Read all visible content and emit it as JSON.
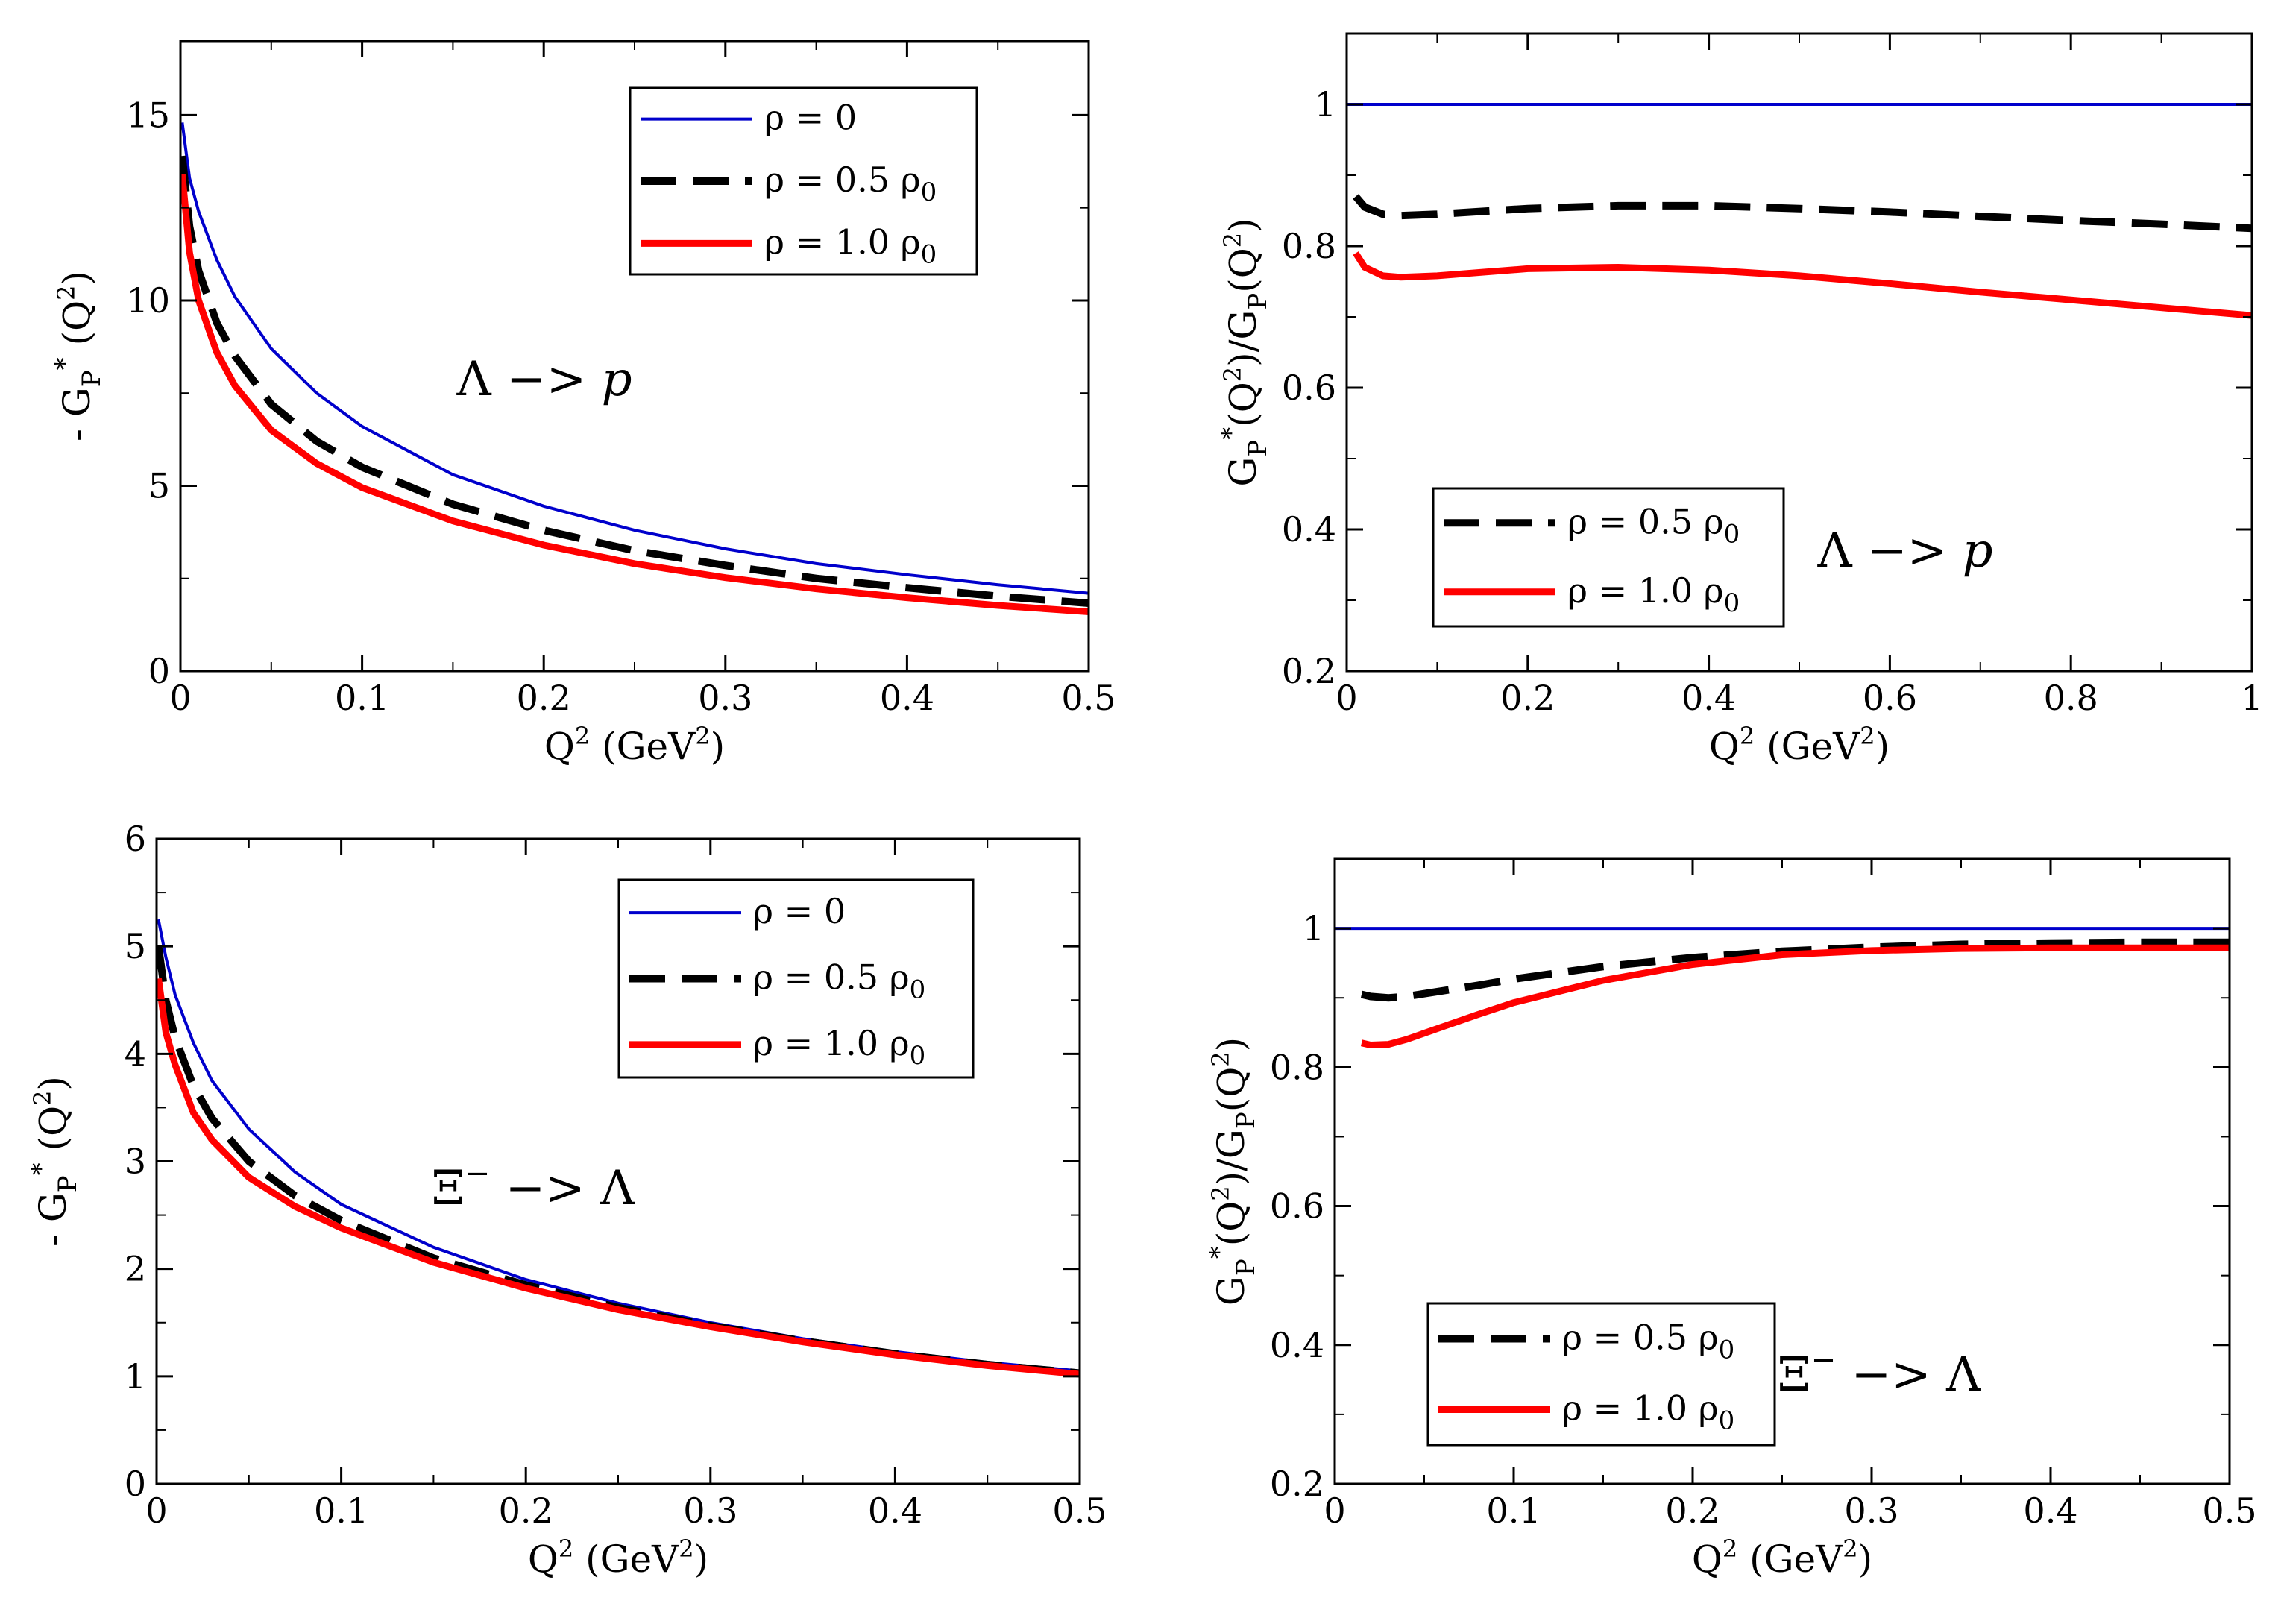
{
  "chart_data": [
    {
      "id": "top_left",
      "type": "line",
      "xlabel": "Q² (GeV²)",
      "ylabel": "- G_P^* (Q²)",
      "xlim": [
        0,
        0.5
      ],
      "ylim": [
        0,
        17
      ],
      "xticks": [
        0,
        0.1,
        0.2,
        0.3,
        0.4,
        0.5
      ],
      "xticklabels": [
        "0",
        "0.1",
        "0.2",
        "0.3",
        "0.4",
        "0.5"
      ],
      "yticks": [
        0,
        5,
        10,
        15
      ],
      "yticklabels": [
        "0",
        "5",
        "10",
        "15"
      ],
      "legend_position": "top-right",
      "legend": [
        "ρ = 0",
        "ρ = 0.5 ρ0",
        "ρ = 1.0 ρ0"
      ],
      "annotation": "Λ −> p",
      "series": [
        {
          "name": "ρ = 0",
          "color": "#0000cc",
          "dash": "solid",
          "x": [
            0.001,
            0.005,
            0.01,
            0.02,
            0.03,
            0.05,
            0.075,
            0.1,
            0.15,
            0.2,
            0.25,
            0.3,
            0.35,
            0.4,
            0.45,
            0.5
          ],
          "y": [
            14.8,
            13.3,
            12.4,
            11.1,
            10.1,
            8.7,
            7.5,
            6.6,
            5.3,
            4.45,
            3.8,
            3.3,
            2.9,
            2.6,
            2.33,
            2.1
          ]
        },
        {
          "name": "ρ = 0.5 ρ0",
          "color": "#000000",
          "dash": "dashed",
          "x": [
            0.001,
            0.005,
            0.01,
            0.02,
            0.03,
            0.05,
            0.075,
            0.1,
            0.15,
            0.2,
            0.25,
            0.3,
            0.35,
            0.4,
            0.45,
            0.5
          ],
          "y": [
            13.9,
            12.0,
            10.8,
            9.4,
            8.5,
            7.2,
            6.2,
            5.5,
            4.5,
            3.8,
            3.25,
            2.85,
            2.5,
            2.25,
            2.02,
            1.83
          ]
        },
        {
          "name": "ρ = 1.0 ρ0",
          "color": "#ff0000",
          "dash": "solid",
          "x": [
            0.001,
            0.005,
            0.01,
            0.02,
            0.03,
            0.05,
            0.075,
            0.1,
            0.15,
            0.2,
            0.25,
            0.3,
            0.35,
            0.4,
            0.45,
            0.5
          ],
          "y": [
            13.4,
            11.3,
            10.0,
            8.6,
            7.7,
            6.5,
            5.6,
            4.95,
            4.05,
            3.4,
            2.9,
            2.52,
            2.22,
            1.98,
            1.77,
            1.6
          ]
        }
      ]
    },
    {
      "id": "top_right",
      "type": "line",
      "xlabel": "Q² (GeV²)",
      "ylabel": "G_P^*(Q²)/G_P(Q²)",
      "xlim": [
        0,
        1
      ],
      "ylim": [
        0.2,
        1.1
      ],
      "xticks": [
        0,
        0.2,
        0.4,
        0.6,
        0.8,
        1
      ],
      "xticklabels": [
        "0",
        "0.2",
        "0.4",
        "0.6",
        "0.8",
        "1"
      ],
      "yticks": [
        0.2,
        0.4,
        0.6,
        0.8,
        1
      ],
      "yticklabels": [
        "0.2",
        "0.4",
        "0.6",
        "0.8",
        "1"
      ],
      "legend_position": "bottom-left",
      "legend": [
        "ρ = 0.5 ρ0",
        "ρ = 1.0 ρ0"
      ],
      "annotation": "Λ −> p",
      "series": [
        {
          "name": "ρ = 0",
          "color": "#0000cc",
          "dash": "solid",
          "x": [
            0,
            1
          ],
          "y": [
            1.0,
            1.0
          ]
        },
        {
          "name": "ρ = 0.5 ρ0",
          "color": "#000000",
          "dash": "dashed",
          "x": [
            0.01,
            0.02,
            0.04,
            0.06,
            0.1,
            0.2,
            0.3,
            0.4,
            0.5,
            0.6,
            0.7,
            0.8,
            0.9,
            1.0
          ],
          "y": [
            0.87,
            0.855,
            0.845,
            0.843,
            0.845,
            0.853,
            0.857,
            0.857,
            0.853,
            0.848,
            0.842,
            0.836,
            0.831,
            0.825
          ]
        },
        {
          "name": "ρ = 1.0 ρ0",
          "color": "#ff0000",
          "dash": "solid",
          "x": [
            0.01,
            0.02,
            0.04,
            0.06,
            0.1,
            0.2,
            0.3,
            0.4,
            0.5,
            0.6,
            0.7,
            0.8,
            0.9,
            1.0
          ],
          "y": [
            0.79,
            0.77,
            0.758,
            0.756,
            0.758,
            0.768,
            0.77,
            0.766,
            0.758,
            0.747,
            0.735,
            0.724,
            0.713,
            0.702
          ]
        }
      ]
    },
    {
      "id": "bottom_left",
      "type": "line",
      "xlabel": "Q² (GeV²)",
      "ylabel": "- G_P^* (Q²)",
      "xlim": [
        0,
        0.5
      ],
      "ylim": [
        0,
        6
      ],
      "xticks": [
        0,
        0.1,
        0.2,
        0.3,
        0.4,
        0.5
      ],
      "xticklabels": [
        "0",
        "0.1",
        "0.2",
        "0.3",
        "0.4",
        "0.5"
      ],
      "yticks": [
        0,
        1,
        2,
        3,
        4,
        5,
        6
      ],
      "yticklabels": [
        "0",
        "1",
        "2",
        "3",
        "4",
        "5",
        "6"
      ],
      "legend_position": "top-right",
      "legend": [
        "ρ = 0",
        "ρ = 0.5 ρ0",
        "ρ = 1.0 ρ0"
      ],
      "annotation": "Ξ⁻ −> Λ",
      "series": [
        {
          "name": "ρ = 0",
          "color": "#0000cc",
          "dash": "solid",
          "x": [
            0.001,
            0.005,
            0.01,
            0.02,
            0.03,
            0.05,
            0.075,
            0.1,
            0.15,
            0.2,
            0.25,
            0.3,
            0.35,
            0.4,
            0.45,
            0.5
          ],
          "y": [
            5.25,
            4.9,
            4.55,
            4.1,
            3.75,
            3.3,
            2.9,
            2.6,
            2.2,
            1.9,
            1.68,
            1.5,
            1.35,
            1.23,
            1.13,
            1.05
          ]
        },
        {
          "name": "ρ = 0.5 ρ0",
          "color": "#000000",
          "dash": "dashed",
          "x": [
            0.001,
            0.005,
            0.01,
            0.02,
            0.03,
            0.05,
            0.075,
            0.1,
            0.15,
            0.2,
            0.25,
            0.3,
            0.35,
            0.4,
            0.45,
            0.5
          ],
          "y": [
            5.0,
            4.5,
            4.15,
            3.7,
            3.4,
            3.0,
            2.68,
            2.45,
            2.1,
            1.85,
            1.64,
            1.47,
            1.33,
            1.21,
            1.11,
            1.03
          ]
        },
        {
          "name": "ρ = 1.0 ρ0",
          "color": "#ff0000",
          "dash": "solid",
          "x": [
            0.001,
            0.005,
            0.01,
            0.02,
            0.03,
            0.05,
            0.075,
            0.1,
            0.15,
            0.2,
            0.25,
            0.3,
            0.35,
            0.4,
            0.45,
            0.5
          ],
          "y": [
            4.7,
            4.2,
            3.9,
            3.45,
            3.2,
            2.85,
            2.58,
            2.38,
            2.06,
            1.82,
            1.62,
            1.46,
            1.32,
            1.2,
            1.1,
            1.02
          ]
        }
      ]
    },
    {
      "id": "bottom_right",
      "type": "line",
      "xlabel": "Q² (GeV²)",
      "ylabel": "G_P^*(Q²)/G_P(Q²)",
      "xlim": [
        0,
        0.5
      ],
      "ylim": [
        0.2,
        1.1
      ],
      "xticks": [
        0,
        0.1,
        0.2,
        0.3,
        0.4,
        0.5
      ],
      "xticklabels": [
        "0",
        "0.1",
        "0.2",
        "0.3",
        "0.4",
        "0.5"
      ],
      "yticks": [
        0.2,
        0.4,
        0.6,
        0.8,
        1
      ],
      "yticklabels": [
        "0.2",
        "0.4",
        "0.6",
        "0.8",
        "1"
      ],
      "legend_position": "bottom-left",
      "legend": [
        "ρ = 0.5 ρ0",
        "ρ = 1.0 ρ0"
      ],
      "annotation": "Ξ⁻ −> Λ",
      "series": [
        {
          "name": "ρ = 0",
          "color": "#0000cc",
          "dash": "solid",
          "x": [
            0,
            0.5
          ],
          "y": [
            1.0,
            1.0
          ]
        },
        {
          "name": "ρ = 0.5 ρ0",
          "color": "#000000",
          "dash": "dashed",
          "x": [
            0.015,
            0.02,
            0.03,
            0.04,
            0.06,
            0.08,
            0.1,
            0.15,
            0.2,
            0.25,
            0.3,
            0.35,
            0.4,
            0.45,
            0.5
          ],
          "y": [
            0.905,
            0.902,
            0.9,
            0.902,
            0.91,
            0.918,
            0.927,
            0.945,
            0.958,
            0.967,
            0.973,
            0.977,
            0.979,
            0.98,
            0.98
          ]
        },
        {
          "name": "ρ = 1.0 ρ0",
          "color": "#ff0000",
          "dash": "solid",
          "x": [
            0.015,
            0.02,
            0.03,
            0.04,
            0.06,
            0.08,
            0.1,
            0.15,
            0.2,
            0.25,
            0.3,
            0.35,
            0.4,
            0.45,
            0.5
          ],
          "y": [
            0.835,
            0.832,
            0.833,
            0.84,
            0.858,
            0.876,
            0.893,
            0.925,
            0.948,
            0.962,
            0.968,
            0.971,
            0.972,
            0.972,
            0.972
          ]
        }
      ]
    }
  ]
}
